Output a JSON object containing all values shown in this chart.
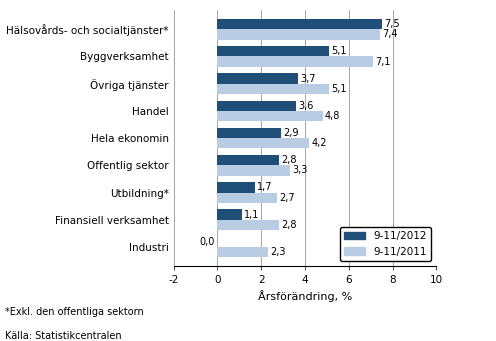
{
  "categories": [
    "Industri",
    "Finansiell verksamhet",
    "Utbildning*",
    "Offentlig sektor",
    "Hela ekonomin",
    "Handel",
    "Övriga tjänster",
    "Byggverksamhet",
    "Hälsovårds- och socialtjänster*"
  ],
  "values_2012": [
    0.0,
    1.1,
    1.7,
    2.8,
    2.9,
    3.6,
    3.7,
    5.1,
    7.5
  ],
  "values_2011": [
    2.3,
    2.8,
    2.7,
    3.3,
    4.2,
    4.8,
    5.1,
    7.1,
    7.4
  ],
  "color_2012": "#1F4E79",
  "color_2011": "#B8CCE4",
  "xlabel": "Årsförändring, %",
  "xlim": [
    -2,
    10
  ],
  "xticks": [
    -2,
    0,
    2,
    4,
    6,
    8,
    10
  ],
  "legend_2012": "9-11/2012",
  "legend_2011": "9-11/2011",
  "footnote1": "*Exkl. den offentliga sektorn",
  "footnote2": "Källa: Statistikcentralen",
  "bar_height": 0.38,
  "label_fontsize": 7,
  "tick_fontsize": 7.5,
  "xlabel_fontsize": 8
}
